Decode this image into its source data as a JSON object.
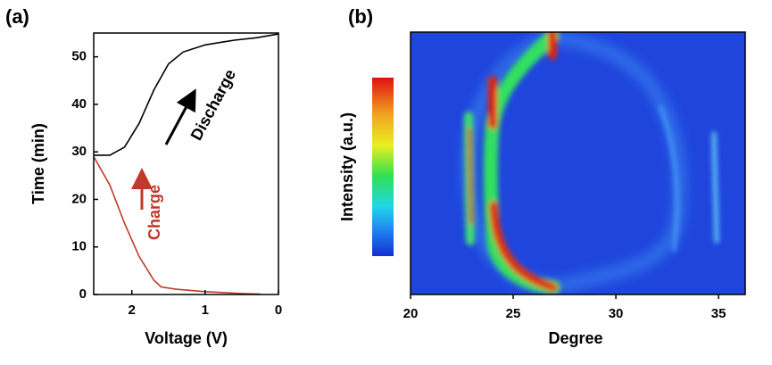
{
  "chart_data": [
    {
      "type": "line",
      "panel_label": "(a)",
      "xlabel": "Voltage (V)",
      "ylabel": "Time (min)",
      "xlim": [
        2.52,
        0
      ],
      "ylim": [
        0,
        55
      ],
      "xticks": [
        2,
        1,
        0
      ],
      "yticks": [
        0,
        10,
        20,
        30,
        40,
        50
      ],
      "series": [
        {
          "name": "Discharge",
          "color": "#000000",
          "x": [
            2.52,
            2.3,
            2.1,
            1.9,
            1.7,
            1.5,
            1.3,
            1.0,
            0.6,
            0.3,
            0
          ],
          "values": [
            29.3,
            29.3,
            31,
            36,
            43,
            48.5,
            51,
            52.5,
            53.5,
            54,
            54.8
          ]
        },
        {
          "name": "Charge",
          "color": "#c0392b",
          "x": [
            2.52,
            2.3,
            2.1,
            1.9,
            1.7,
            1.6,
            1.4,
            1.0,
            0.5,
            0.25
          ],
          "values": [
            29,
            23,
            15,
            8,
            3,
            1.6,
            1.1,
            0.6,
            0.2,
            0.1
          ]
        }
      ]
    },
    {
      "type": "heatmap",
      "panel_label": "(b)",
      "xlabel": "Degree",
      "colorbar_label": "Intensity (a.u.)",
      "xlim": [
        20,
        36.3
      ],
      "xticks": [
        20,
        25,
        30,
        35
      ]
    }
  ]
}
